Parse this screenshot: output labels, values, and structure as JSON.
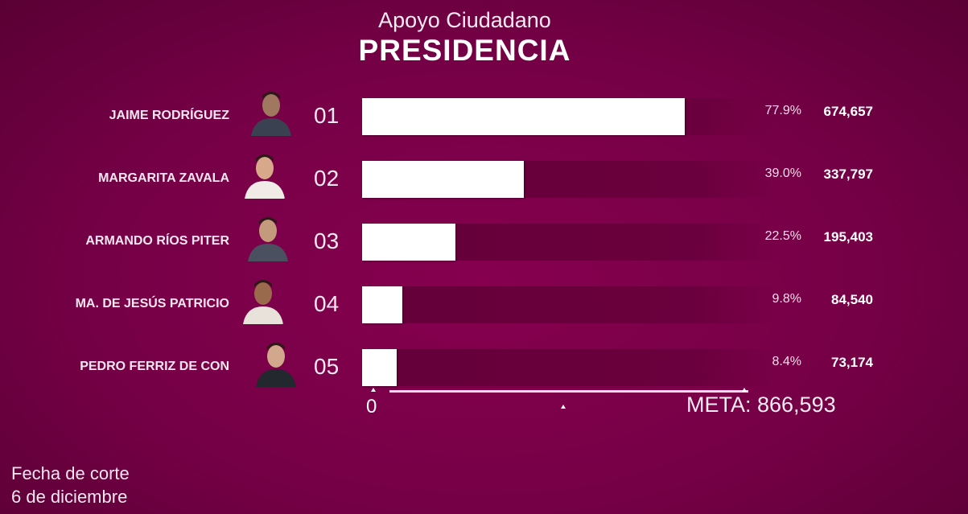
{
  "chart_data": {
    "type": "bar",
    "orientation": "horizontal",
    "subtitle": "Apoyo Ciudadano",
    "title": "PRESIDENCIA",
    "categories": [
      "JAIME RODRÍGUEZ",
      "MARGARITA ZAVALA",
      "ARMANDO RÍOS PITER",
      "MA. DE JESÚS PATRICIO",
      "PEDRO FERRIZ DE CON"
    ],
    "ranks": [
      "01",
      "02",
      "03",
      "04",
      "05"
    ],
    "values": [
      674657,
      337797,
      195403,
      84540,
      73174
    ],
    "value_labels": [
      "674,657",
      "337,797",
      "195,403",
      "84,540",
      "73,174"
    ],
    "percent_labels": [
      "77.9%",
      "39.0%",
      "22.5%",
      "9.8%",
      "8.4%"
    ],
    "xlim": [
      0,
      866593
    ],
    "axis_zero_label": "0",
    "goal_label": "META: 866,593",
    "grid": false,
    "colors": {
      "background": "#760046",
      "bar": "#ffffff",
      "track": "#650039"
    }
  },
  "footer": {
    "line1": "Fecha de corte",
    "line2": "6 de diciembre"
  }
}
